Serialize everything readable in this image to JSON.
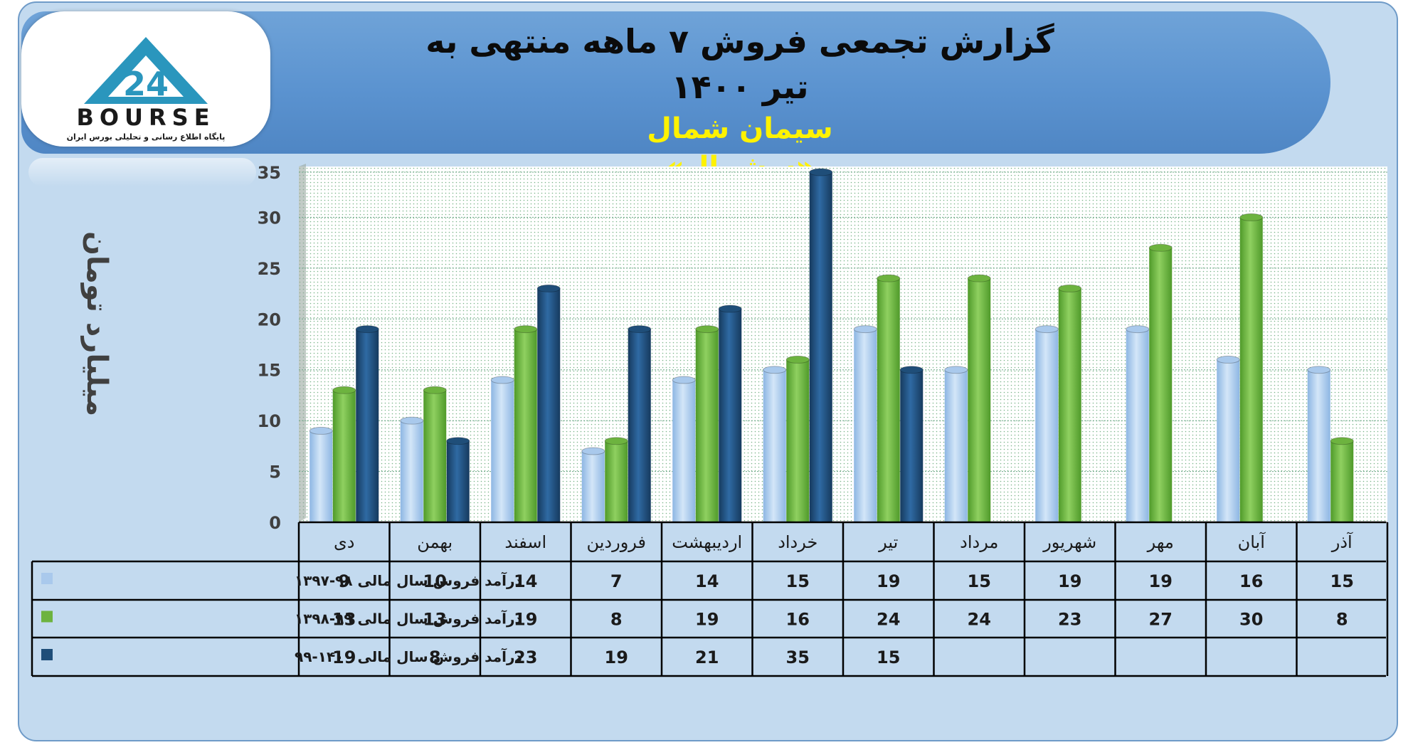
{
  "header": {
    "title": "گزارش تجمعی فروش ۷ ماهه منتهی به تیر ۱۴۰۰",
    "company": "سیمان شمال",
    "ticker": "«سشمال»"
  },
  "logo": {
    "name": "BOURSE",
    "tagline": "پایگاه اطلاع رسانی و تحلیلی بورس ایران"
  },
  "colors": {
    "series1": "#a9c9ec",
    "series2": "#6db33f",
    "series3": "#1f4e79",
    "banner": "#5b93d0",
    "title_yellow": "#fff200"
  },
  "chart_data": {
    "type": "bar",
    "title": "",
    "xlabel": "",
    "ylabel": "میلیارد تومان",
    "ylim": [
      0,
      35
    ],
    "yticks": [
      0,
      5,
      10,
      15,
      20,
      25,
      30,
      35
    ],
    "grid": true,
    "legend": "data-table-left",
    "categories": [
      "دی",
      "بهمن",
      "اسفند",
      "فروردین",
      "اردیبهشت",
      "خرداد",
      "تیر",
      "مرداد",
      "شهریور",
      "مهر",
      "آبان",
      "آذر"
    ],
    "series": [
      {
        "name": "درآمد فروش سال مالی ۹۸-۱۳۹۷",
        "values": [
          9,
          10,
          14,
          7,
          14,
          15,
          19,
          15,
          19,
          19,
          16,
          15
        ]
      },
      {
        "name": "درآمد فروش سال مالی ۹۹-۱۳۹۸",
        "values": [
          13,
          13,
          19,
          8,
          19,
          16,
          24,
          24,
          23,
          27,
          30,
          8
        ]
      },
      {
        "name": "درآمد فروش سال مالی ۱۴۰۰-۹۹",
        "values": [
          19,
          8,
          23,
          19,
          21,
          35,
          15,
          null,
          null,
          null,
          null,
          null
        ]
      }
    ]
  }
}
